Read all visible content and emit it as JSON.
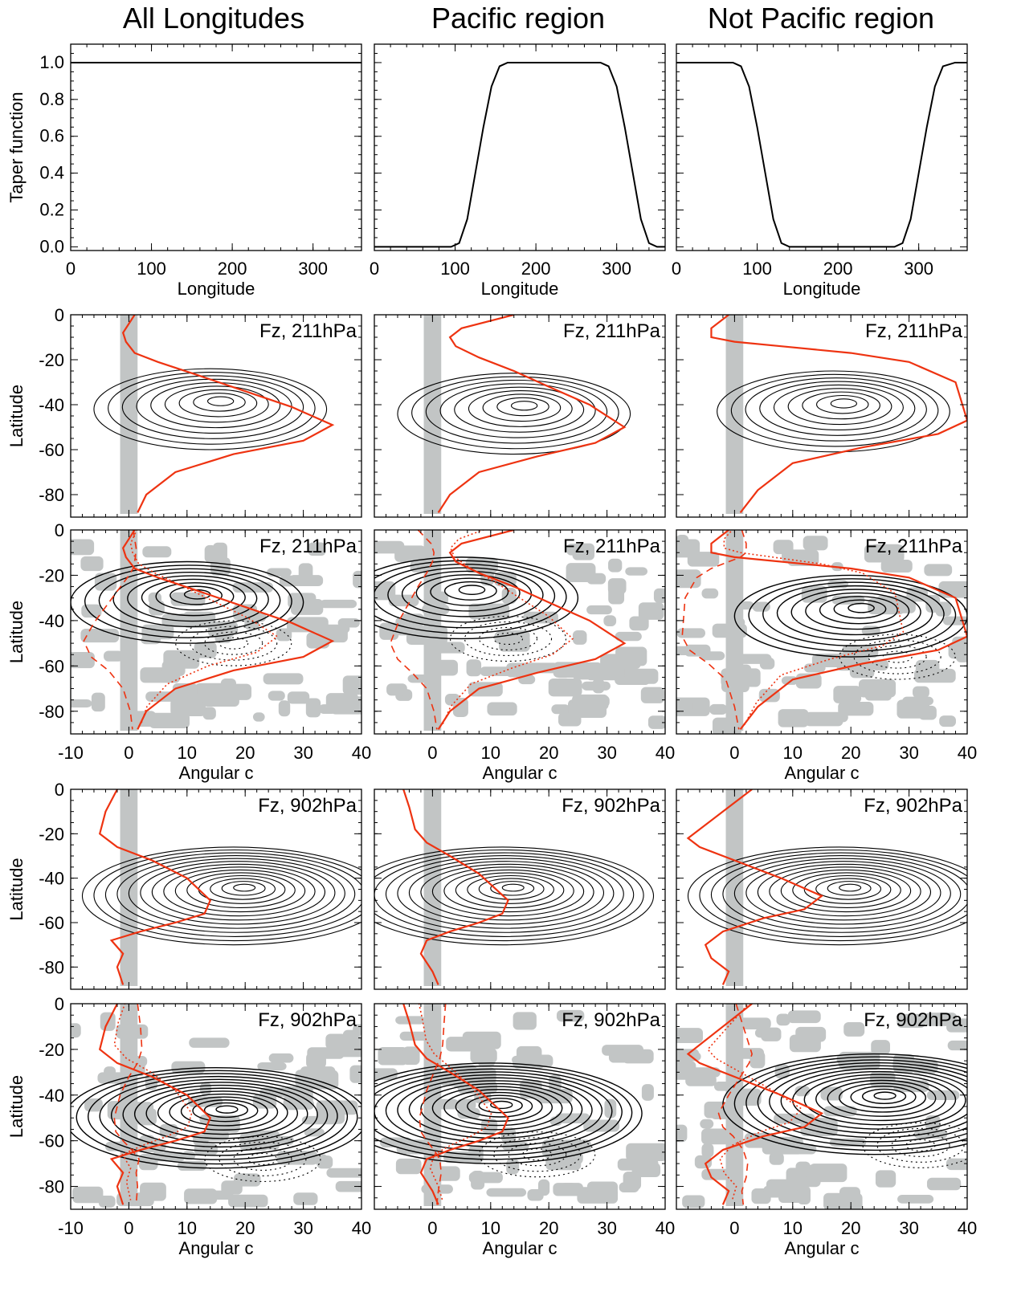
{
  "column_titles": [
    "All Longitudes",
    "Pacific region",
    "Not Pacific region"
  ],
  "colors": {
    "text": "#000000",
    "contour": "#000000",
    "curve": "#ee3311",
    "shade": "#c2c5c5"
  },
  "chart_data": [
    {
      "type": "line",
      "row": 0,
      "panel": "All Longitudes",
      "xlabel": "Longitude",
      "ylabel": "Taper function",
      "xlim": [
        0,
        360
      ],
      "ylim": [
        -0.02,
        1.1
      ],
      "xticks": [
        0,
        100,
        200,
        300
      ],
      "yticks": [
        "0.0",
        "0.2",
        "0.4",
        "0.6",
        "0.8",
        "1.0"
      ],
      "series": [
        {
          "x": [
            0,
            360
          ],
          "y": [
            1,
            1
          ]
        }
      ]
    },
    {
      "type": "line",
      "row": 0,
      "panel": "Pacific region",
      "xlabel": "Longitude",
      "ylabel": "",
      "xlim": [
        0,
        360
      ],
      "ylim": [
        -0.02,
        1.1
      ],
      "xticks": [
        0,
        100,
        200,
        300
      ],
      "series": [
        {
          "x": [
            0,
            95,
            105,
            115,
            125,
            135,
            145,
            155,
            165,
            280,
            290,
            300,
            310,
            320,
            330,
            340,
            350,
            360
          ],
          "y": [
            0,
            0,
            0.02,
            0.15,
            0.4,
            0.65,
            0.87,
            0.98,
            1.0,
            1.0,
            0.98,
            0.87,
            0.65,
            0.4,
            0.15,
            0.02,
            0,
            0
          ]
        }
      ]
    },
    {
      "type": "line",
      "row": 0,
      "panel": "Not Pacific region",
      "xlabel": "Longitude",
      "ylabel": "",
      "xlim": [
        0,
        360
      ],
      "ylim": [
        -0.02,
        1.1
      ],
      "xticks": [
        0,
        100,
        200,
        300
      ],
      "series": [
        {
          "x": [
            0,
            70,
            80,
            90,
            100,
            110,
            120,
            130,
            140,
            150,
            270,
            280,
            290,
            300,
            310,
            320,
            330,
            345,
            360
          ],
          "y": [
            1.0,
            1.0,
            0.98,
            0.87,
            0.65,
            0.4,
            0.15,
            0.02,
            0,
            0,
            0,
            0.02,
            0.15,
            0.4,
            0.65,
            0.87,
            0.98,
            1.0,
            1.0
          ]
        }
      ]
    },
    {
      "type": "contour",
      "row": 1,
      "panel": "All Longitudes",
      "annotation": "Fz, 211hPa",
      "ylabel": "Latitude",
      "xlim": [
        -10,
        40
      ],
      "ylim": [
        -90,
        0
      ],
      "yticks": [
        0,
        -20,
        -40,
        -60,
        -80
      ],
      "peak": {
        "c": 14,
        "lat": -42
      },
      "red_curve": {
        "c": [
          1,
          -1,
          -0.5,
          1,
          5,
          12,
          20,
          28,
          35,
          30,
          18,
          8,
          3,
          1.5
        ],
        "lat": [
          0,
          -8,
          -12,
          -17,
          -21,
          -27,
          -34,
          -41,
          -49,
          -56,
          -62,
          -70,
          -80,
          -88
        ]
      }
    },
    {
      "type": "contour",
      "row": 1,
      "panel": "Pacific region",
      "annotation": "Fz, 211hPa",
      "xlim": [
        -10,
        40
      ],
      "ylim": [
        -90,
        0
      ],
      "peak": {
        "c": 14,
        "lat": -44
      },
      "red_curve": {
        "c": [
          14,
          5,
          3,
          4,
          8,
          14,
          20,
          27,
          33,
          28,
          18,
          8,
          3,
          1
        ],
        "lat": [
          0,
          -6,
          -10,
          -14,
          -19,
          -25,
          -32,
          -40,
          -50,
          -57,
          -63,
          -70,
          -80,
          -88
        ]
      }
    },
    {
      "type": "contour",
      "row": 1,
      "panel": "Not Pacific region",
      "annotation": "Fz, 211hPa",
      "xlim": [
        -10,
        40
      ],
      "ylim": [
        -90,
        0
      ],
      "peak": {
        "c": 17,
        "lat": -43
      },
      "red_curve": {
        "c": [
          -1,
          -4,
          -4,
          0,
          8,
          20,
          30,
          38,
          40,
          35,
          22,
          10,
          4,
          1
        ],
        "lat": [
          0,
          -6,
          -10,
          -12,
          -14,
          -17,
          -21,
          -30,
          -47,
          -53,
          -59,
          -66,
          -78,
          -88
        ]
      }
    },
    {
      "type": "contour",
      "row": 2,
      "panel": "All Longitudes",
      "annotation": "Fz, 211hPa",
      "ylabel": "Latitude",
      "xlabel": "Angular c",
      "xlim": [
        -10,
        40
      ],
      "ylim": [
        -90,
        0
      ],
      "xticks": [
        -10,
        0,
        10,
        20,
        30,
        40
      ],
      "yticks": [
        0,
        -20,
        -40,
        -60,
        -80
      ],
      "peak": {
        "c": 10,
        "lat": -32
      },
      "red_curve": {
        "c": [
          1,
          -1,
          -0.5,
          1,
          5,
          12,
          20,
          28,
          35,
          30,
          18,
          8,
          3,
          1.5
        ],
        "lat": [
          0,
          -8,
          -12,
          -17,
          -21,
          -27,
          -34,
          -41,
          -49,
          -56,
          -62,
          -70,
          -80,
          -88
        ]
      }
    },
    {
      "type": "contour",
      "row": 2,
      "panel": "Pacific region",
      "annotation": "Fz, 211hPa",
      "xlabel": "Angular c",
      "xlim": [
        -10,
        40
      ],
      "ylim": [
        -90,
        0
      ],
      "xticks": [
        -10,
        0,
        10,
        20,
        30,
        40
      ],
      "peak": {
        "c": 5,
        "lat": -30
      },
      "red_curve": {
        "c": [
          14,
          5,
          3,
          4,
          8,
          14,
          20,
          27,
          33,
          28,
          18,
          8,
          3,
          1
        ],
        "lat": [
          0,
          -6,
          -10,
          -14,
          -19,
          -25,
          -32,
          -40,
          -50,
          -57,
          -63,
          -70,
          -80,
          -88
        ]
      }
    },
    {
      "type": "contour",
      "row": 2,
      "panel": "Not Pacific region",
      "annotation": "Fz, 211hPa",
      "xlabel": "Angular c",
      "xlim": [
        -10,
        40
      ],
      "ylim": [
        -90,
        0
      ],
      "xticks": [
        -10,
        0,
        10,
        20,
        30,
        40
      ],
      "peak": {
        "c": 20,
        "lat": -38
      },
      "red_curve": {
        "c": [
          -1,
          -4,
          -4,
          0,
          8,
          20,
          30,
          38,
          40,
          35,
          22,
          10,
          4,
          1
        ],
        "lat": [
          0,
          -6,
          -10,
          -12,
          -14,
          -17,
          -21,
          -30,
          -47,
          -53,
          -59,
          -66,
          -78,
          -88
        ]
      }
    },
    {
      "type": "contour",
      "row": 3,
      "panel": "All Longitudes",
      "annotation": "Fz, 902hPa",
      "ylabel": "Latitude",
      "xlim": [
        -10,
        40
      ],
      "ylim": [
        -90,
        0
      ],
      "yticks": [
        0,
        -20,
        -40,
        -60,
        -80
      ],
      "peak": {
        "c": 18,
        "lat": -48
      },
      "red_curve": {
        "c": [
          -2,
          -4,
          -5,
          -2,
          4,
          10,
          14,
          13,
          8,
          2,
          -3,
          -1,
          -2,
          -1
        ],
        "lat": [
          0,
          -10,
          -20,
          -26,
          -32,
          -40,
          -50,
          -56,
          -60,
          -64,
          -68,
          -74,
          -80,
          -88
        ]
      }
    },
    {
      "type": "contour",
      "row": 3,
      "panel": "Pacific region",
      "annotation": "Fz, 902hPa",
      "xlim": [
        -10,
        40
      ],
      "ylim": [
        -90,
        0
      ],
      "peak": {
        "c": 12,
        "lat": -48
      },
      "red_curve": {
        "c": [
          -5,
          -4,
          -3,
          -1,
          3,
          8,
          13,
          12,
          8,
          3,
          -1,
          -2,
          0,
          1
        ],
        "lat": [
          0,
          -8,
          -18,
          -24,
          -30,
          -38,
          -50,
          -56,
          -60,
          -64,
          -68,
          -74,
          -82,
          -88
        ]
      }
    },
    {
      "type": "contour",
      "row": 3,
      "panel": "Not Pacific region",
      "annotation": "Fz, 902hPa",
      "xlim": [
        -10,
        40
      ],
      "ylim": [
        -90,
        0
      ],
      "peak": {
        "c": 18,
        "lat": -48
      },
      "red_curve": {
        "c": [
          3,
          -2,
          -8,
          -6,
          0,
          8,
          15,
          12,
          5,
          -2,
          -5,
          -4,
          -1,
          -2
        ],
        "lat": [
          0,
          -10,
          -22,
          -26,
          -32,
          -40,
          -48,
          -54,
          -58,
          -64,
          -70,
          -76,
          -82,
          -88
        ]
      }
    },
    {
      "type": "contour",
      "row": 4,
      "panel": "All Longitudes",
      "annotation": "Fz, 902hPa",
      "ylabel": "Latitude",
      "xlabel": "Angular c",
      "xlim": [
        -10,
        40
      ],
      "ylim": [
        -90,
        0
      ],
      "xticks": [
        -10,
        0,
        10,
        20,
        30,
        40
      ],
      "yticks": [
        0,
        -20,
        -40,
        -60,
        -80
      ],
      "peak": {
        "c": 15,
        "lat": -50
      },
      "red_curve": {
        "c": [
          -2,
          -4,
          -5,
          -2,
          4,
          10,
          14,
          13,
          8,
          2,
          -3,
          -1,
          -2,
          -1
        ],
        "lat": [
          0,
          -10,
          -20,
          -26,
          -32,
          -40,
          -50,
          -56,
          -60,
          -64,
          -68,
          -74,
          -80,
          -88
        ]
      }
    },
    {
      "type": "contour",
      "row": 4,
      "panel": "Pacific region",
      "annotation": "Fz, 902hPa",
      "xlabel": "Angular c",
      "xlim": [
        -10,
        40
      ],
      "ylim": [
        -90,
        0
      ],
      "xticks": [
        -10,
        0,
        10,
        20,
        30,
        40
      ],
      "peak": {
        "c": 10,
        "lat": -48
      },
      "red_curve": {
        "c": [
          -5,
          -4,
          -3,
          -1,
          3,
          8,
          13,
          12,
          8,
          3,
          -1,
          -2,
          0,
          1
        ],
        "lat": [
          0,
          -8,
          -18,
          -24,
          -30,
          -38,
          -50,
          -56,
          -60,
          -64,
          -68,
          -74,
          -82,
          -88
        ]
      }
    },
    {
      "type": "contour",
      "row": 4,
      "panel": "Not Pacific region",
      "annotation": "Fz, 902hPa",
      "xlabel": "Angular c",
      "xlim": [
        -10,
        40
      ],
      "ylim": [
        -90,
        0
      ],
      "xticks": [
        -10,
        0,
        10,
        20,
        30,
        40
      ],
      "peak": {
        "c": 24,
        "lat": -44
      },
      "red_curve": {
        "c": [
          3,
          -2,
          -8,
          -6,
          0,
          8,
          15,
          12,
          5,
          -2,
          -5,
          -4,
          -1,
          -2
        ],
        "lat": [
          0,
          -10,
          -22,
          -26,
          -32,
          -40,
          -48,
          -54,
          -58,
          -64,
          -70,
          -76,
          -82,
          -88
        ]
      }
    }
  ]
}
